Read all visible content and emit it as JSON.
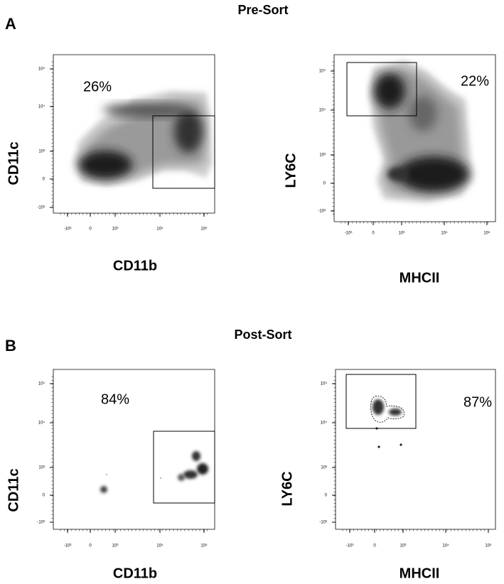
{
  "panels": [
    {
      "label": "A",
      "title": "Pre-Sort",
      "plots": [
        {
          "y_label": "CD11c",
          "x_label": "CD11b",
          "gate_percent": "26%",
          "yticks": [
            "10⁵",
            "10⁴",
            "10³",
            "0",
            "-10³"
          ],
          "xticks": [
            "-10³",
            "0",
            "10³",
            "10⁴",
            "10⁵"
          ]
        },
        {
          "y_label": "LY6C",
          "x_label": "MHCII",
          "gate_percent": "22%",
          "yticks": [
            "10⁵",
            "10⁴",
            "10³",
            "0",
            "-10³"
          ],
          "xticks": [
            "-10³",
            "0",
            "10³",
            "10⁴",
            "10⁵"
          ]
        }
      ]
    },
    {
      "label": "B",
      "title": "Post-Sort",
      "plots": [
        {
          "y_label": "CD11c",
          "x_label": "CD11b",
          "gate_percent": "84%",
          "yticks": [
            "10⁵",
            "10⁴",
            "10³",
            "0",
            "-10³"
          ],
          "xticks": [
            "-10³",
            "0",
            "10³",
            "10⁴",
            "10⁵"
          ]
        },
        {
          "y_label": "LY6C",
          "x_label": "MHCII",
          "gate_percent": "87%",
          "yticks": [
            "10⁵",
            "10⁴",
            "10³",
            "0",
            "-10³"
          ],
          "xticks": [
            "-10³",
            "0",
            "10³",
            "10⁴",
            "10⁵"
          ]
        }
      ]
    }
  ]
}
